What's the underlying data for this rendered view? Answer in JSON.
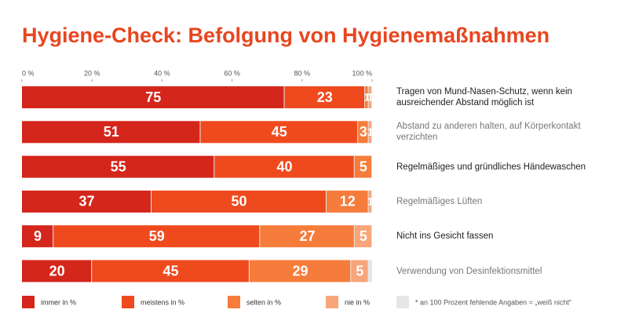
{
  "chart_data": {
    "type": "stacked_bar_horizontal",
    "title": "Hygiene-Check: Befolgung von Hygienemaßnahmen",
    "categories": [
      "Tragen von Mund-Nasen-Schutz, wenn kein ausreichender Abstand möglich ist",
      "Abstand zu anderen halten, auf Körperkontakt verzichten",
      "Regelmäßiges und gründliches Händewaschen",
      "Regelmäßiges Lüften",
      "Nicht ins Gesicht fassen",
      "Verwendung von Desinfektionsmittel"
    ],
    "series": [
      {
        "name": "immer in %",
        "color": "#d5261c",
        "values": [
          75,
          51,
          55,
          37,
          9,
          20
        ]
      },
      {
        "name": "meistens in %",
        "color": "#ef4a1e",
        "values": [
          23,
          45,
          40,
          50,
          59,
          45
        ]
      },
      {
        "name": "selten in %",
        "color": "#f57c3a",
        "values": [
          1,
          3,
          5,
          12,
          27,
          29
        ]
      },
      {
        "name": "nie in %",
        "color": "#f8a57a",
        "values": [
          1,
          1,
          0,
          1,
          5,
          5
        ]
      }
    ],
    "note": "* an 100 Prozent fehlende Angaben = „weiß nicht“",
    "note_color": "#e6e6e6",
    "xlim": [
      0,
      100
    ],
    "xticks": [
      {
        "value": 0,
        "label": "0 %"
      },
      {
        "value": 20,
        "label": "20 %"
      },
      {
        "value": 40,
        "label": "40 %"
      },
      {
        "value": 60,
        "label": "60 %"
      },
      {
        "value": 80,
        "label": "80 %"
      },
      {
        "value": 100,
        "label": "100 %"
      }
    ]
  }
}
